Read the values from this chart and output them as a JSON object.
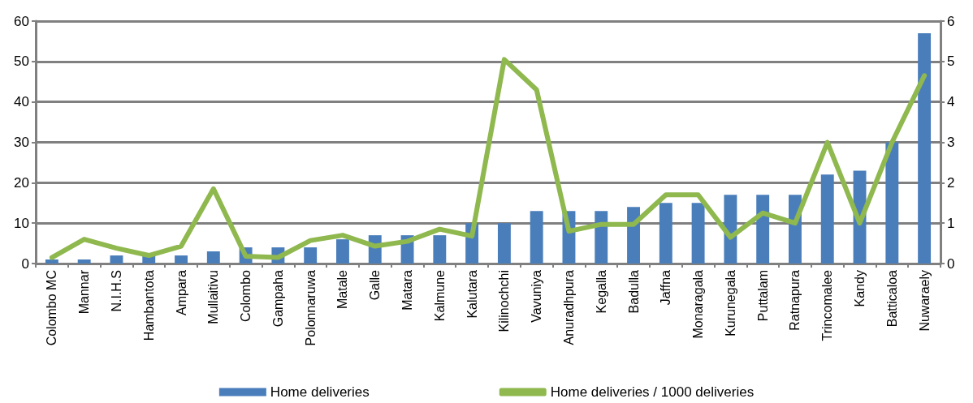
{
  "chart_data": {
    "type": "bar",
    "categories": [
      "Colombo MC",
      "Mannar",
      "N.I.H.S",
      "Hambantota",
      "Ampara",
      "Mullaitivu",
      "Colombo",
      "Gampaha",
      "Polonnaruwa",
      "Matale",
      "Galle",
      "Matara",
      "Kalmune",
      "Kalutara",
      "Kilinochchi",
      "Vavuniya",
      "Anuradhpura",
      "Kegalla",
      "Badulla",
      "Jaffna",
      "Monaragala",
      "Kurunegala",
      "Puttalam",
      "Ratnapura",
      "Trincomalee",
      "Kandy",
      "Batticaloa",
      "Nuwaraely"
    ],
    "series": [
      {
        "name": "Home deliveries",
        "color": "#4a7ebb",
        "values": [
          1,
          1,
          2,
          2,
          2,
          3,
          4,
          4,
          4,
          6,
          7,
          7,
          7,
          10,
          10,
          13,
          13,
          13,
          14,
          15,
          15,
          17,
          17,
          17,
          22,
          23,
          30,
          57
        ]
      },
      {
        "name": "Home deliveries / 1000 deliveries",
        "type": "line",
        "axis": "y2",
        "color": "#8fb84e",
        "values": [
          0.15,
          0.6,
          0.38,
          0.2,
          0.43,
          1.85,
          0.18,
          0.15,
          0.57,
          0.7,
          0.43,
          0.55,
          0.85,
          0.68,
          5.05,
          4.3,
          0.8,
          0.97,
          0.97,
          1.7,
          1.7,
          0.65,
          1.25,
          1.0,
          3.0,
          1.0,
          3.0,
          4.65
        ]
      }
    ],
    "ylim": [
      0,
      60
    ],
    "yticks": [
      0,
      10,
      20,
      30,
      40,
      50,
      60
    ],
    "y2lim": [
      0,
      6
    ],
    "y2ticks": [
      0,
      1,
      2,
      3,
      4,
      5,
      6
    ],
    "grid": "y",
    "legend": "bottom",
    "marker": "none",
    "line_style": "solid"
  }
}
